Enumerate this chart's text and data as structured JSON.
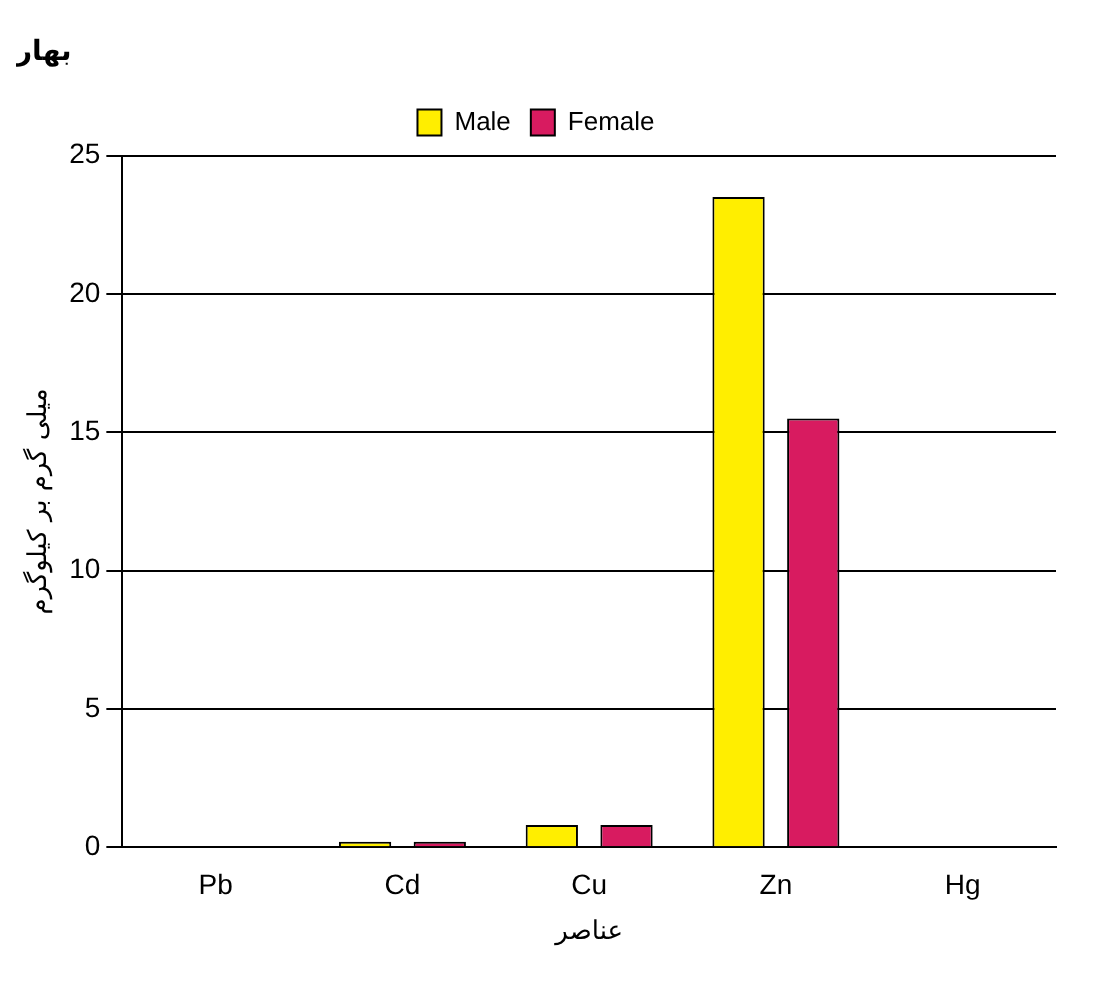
{
  "chart_data": {
    "type": "bar",
    "title": "بهار",
    "xlabel": "عناصر",
    "ylabel": "میلی گرم بر کیلوگرم",
    "categories": [
      "Pb",
      "Cd",
      "Cu",
      "Zn",
      "Hg"
    ],
    "series": [
      {
        "name": "Male",
        "color": "#ffee00",
        "values": [
          0,
          0.2,
          0.8,
          23.5,
          null
        ]
      },
      {
        "name": "Female",
        "color": "#d81b60",
        "values": [
          0,
          0.2,
          0.8,
          15.5,
          null
        ]
      }
    ],
    "ylim": [
      0,
      25
    ],
    "yticks": [
      0,
      5,
      10,
      15,
      20,
      25
    ],
    "grid": "y",
    "legend": "top"
  }
}
